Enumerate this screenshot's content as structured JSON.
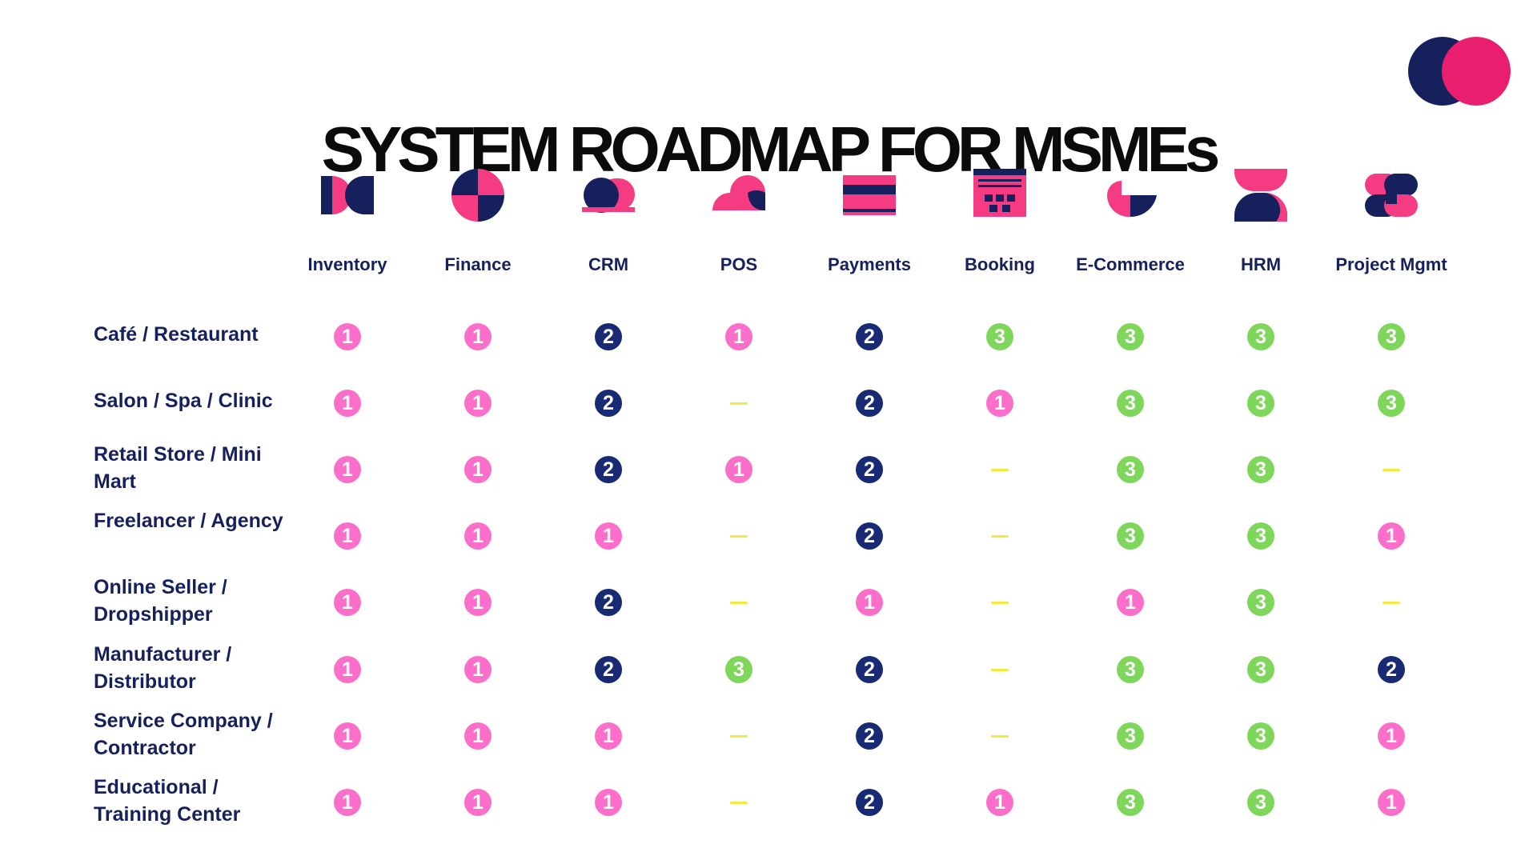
{
  "title": "SYSTEM ROADMAP FOR MSMEs",
  "colors": {
    "pink": "#f53c82",
    "navy": "#16205c",
    "badge_1": "#fb6fcb",
    "badge_2": "#182a73",
    "badge_3": "#7ed65b",
    "dash": "#f4e93f"
  },
  "columns": [
    {
      "label": "Inventory",
      "icon": "inventory-icon"
    },
    {
      "label": "Finance",
      "icon": "finance-icon"
    },
    {
      "label": "CRM",
      "icon": "crm-icon"
    },
    {
      "label": "POS",
      "icon": "pos-icon"
    },
    {
      "label": "Payments",
      "icon": "payments-icon"
    },
    {
      "label": "Booking",
      "icon": "booking-icon"
    },
    {
      "label": "E-Commerce",
      "icon": "ecommerce-icon"
    },
    {
      "label": "HRM",
      "icon": "hrm-icon"
    },
    {
      "label": "Project Mgmt",
      "icon": "project-mgmt-icon"
    }
  ],
  "rows": [
    {
      "label": "Café / Restaurant",
      "values": [
        "1",
        "1",
        "2",
        "1",
        "2",
        "3",
        "3",
        "3",
        "3"
      ]
    },
    {
      "label": "Salon / Spa / Clinic",
      "values": [
        "1",
        "1",
        "2",
        "—",
        "2",
        "1",
        "3",
        "3",
        "3"
      ]
    },
    {
      "label": "Retail Store / Mini Mart",
      "values": [
        "1",
        "1",
        "2",
        "1",
        "2",
        "—",
        "3",
        "3",
        "—"
      ]
    },
    {
      "label": "Freelancer / Agency",
      "values": [
        "1",
        "1",
        "1",
        "—",
        "2",
        "—",
        "3",
        "3",
        "1"
      ]
    },
    {
      "label": "Online Seller / Dropshipper",
      "values": [
        "1",
        "1",
        "2",
        "—",
        "1",
        "—",
        "1",
        "3",
        "—"
      ]
    },
    {
      "label": "Manufacturer / Distributor",
      "values": [
        "1",
        "1",
        "2",
        "3",
        "2",
        "—",
        "3",
        "3",
        "2"
      ]
    },
    {
      "label": "Service Company / Contractor",
      "values": [
        "1",
        "1",
        "1",
        "—",
        "2",
        "—",
        "3",
        "3",
        "1"
      ]
    },
    {
      "label": "Educational / Training Center",
      "values": [
        "1",
        "1",
        "1",
        "—",
        "2",
        "1",
        "3",
        "3",
        "1"
      ]
    }
  ]
}
